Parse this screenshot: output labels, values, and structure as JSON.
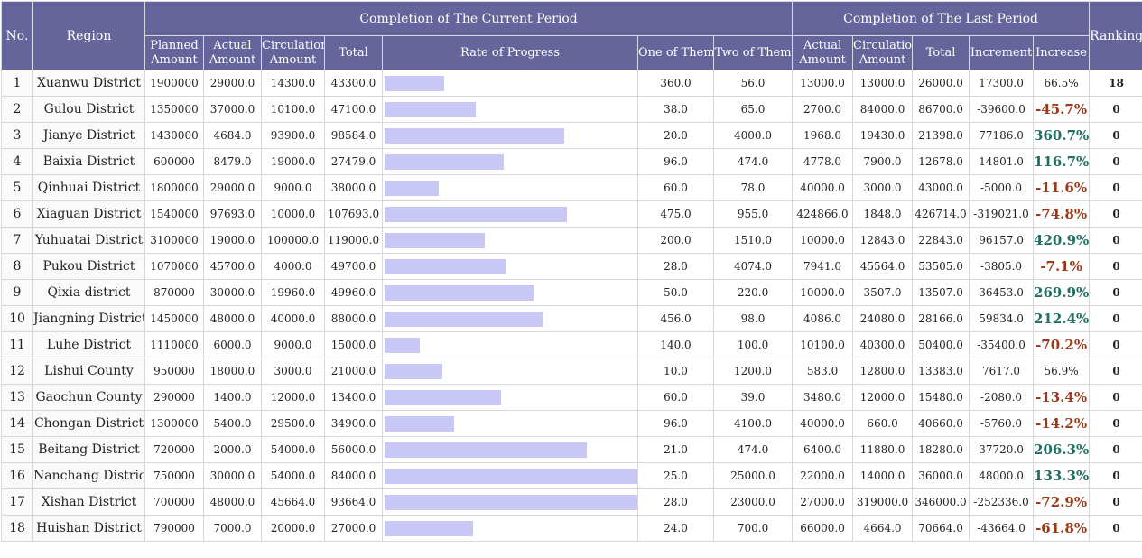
{
  "header": {
    "no": "No.",
    "region": "Region",
    "current_group": "Completion of The Current Period",
    "last_group": "Completion of The Last Period",
    "ranking": "Ranking",
    "planned_amount": "Planned Amount",
    "actual_amount": "Actual Amount",
    "circulation_amount": "Circulation Amount",
    "total": "Total",
    "rate_of_progress": "Rate of Progress",
    "one_of_them": "One of Them",
    "two_of_them": "Two of Them",
    "last_actual_amount": "Actual Amount",
    "last_circulation_amount": "Circulation Amount",
    "last_total": "Total",
    "increment": "Increment",
    "increase": "Increase"
  },
  "colors": {
    "header_bg": "#65649b",
    "bar": "#c9c8f5",
    "increase_positive": "#1f6f63",
    "increase_negative": "#9b3a1a"
  },
  "rows": [
    {
      "no": "1",
      "region": "Xuanwu District",
      "planned": "1900000",
      "actual": "29000.0",
      "circulation": "14300.0",
      "total": "43300.0",
      "progress": 0.235,
      "one": "360.0",
      "two": "56.0",
      "last_actual": "13000.0",
      "last_circulation": "13000.0",
      "last_total": "26000.0",
      "increment": "17300.0",
      "increase": "66.5%",
      "ranking": "18"
    },
    {
      "no": "2",
      "region": "Gulou District",
      "planned": "1350000",
      "actual": "37000.0",
      "circulation": "10100.0",
      "total": "47100.0",
      "progress": 0.36,
      "one": "38.0",
      "two": "65.0",
      "last_actual": "2700.0",
      "last_circulation": "84000.0",
      "last_total": "86700.0",
      "increment": "-39600.0",
      "increase": "-45.7%",
      "ranking": "0"
    },
    {
      "no": "3",
      "region": "Jianye District",
      "planned": "1430000",
      "actual": "4684.0",
      "circulation": "93900.0",
      "total": "98584.0",
      "progress": 0.71,
      "one": "20.0",
      "two": "4000.0",
      "last_actual": "1968.0",
      "last_circulation": "19430.0",
      "last_total": "21398.0",
      "increment": "77186.0",
      "increase": "360.7%",
      "ranking": "0"
    },
    {
      "no": "4",
      "region": "Baixia District",
      "planned": "600000",
      "actual": "8479.0",
      "circulation": "19000.0",
      "total": "27479.0",
      "progress": 0.47,
      "one": "96.0",
      "two": "474.0",
      "last_actual": "4778.0",
      "last_circulation": "7900.0",
      "last_total": "12678.0",
      "increment": "14801.0",
      "increase": "116.7%",
      "ranking": "0"
    },
    {
      "no": "5",
      "region": "Qinhuai District",
      "planned": "1800000",
      "actual": "29000.0",
      "circulation": "9000.0",
      "total": "38000.0",
      "progress": 0.215,
      "one": "60.0",
      "two": "78.0",
      "last_actual": "40000.0",
      "last_circulation": "3000.0",
      "last_total": "43000.0",
      "increment": "-5000.0",
      "increase": "-11.6%",
      "ranking": "0"
    },
    {
      "no": "6",
      "region": "Xiaguan District",
      "planned": "1540000",
      "actual": "97693.0",
      "circulation": "10000.0",
      "total": "107693.0",
      "progress": 0.72,
      "one": "475.0",
      "two": "955.0",
      "last_actual": "424866.0",
      "last_circulation": "1848.0",
      "last_total": "426714.0",
      "increment": "-319021.0",
      "increase": "-74.8%",
      "ranking": "0"
    },
    {
      "no": "7",
      "region": "Yuhuatai District",
      "planned": "3100000",
      "actual": "19000.0",
      "circulation": "100000.0",
      "total": "119000.0",
      "progress": 0.395,
      "one": "200.0",
      "two": "1510.0",
      "last_actual": "10000.0",
      "last_circulation": "12843.0",
      "last_total": "22843.0",
      "increment": "96157.0",
      "increase": "420.9%",
      "ranking": "0"
    },
    {
      "no": "8",
      "region": "Pukou District",
      "planned": "1070000",
      "actual": "45700.0",
      "circulation": "4000.0",
      "total": "49700.0",
      "progress": 0.48,
      "one": "28.0",
      "two": "4074.0",
      "last_actual": "7941.0",
      "last_circulation": "45564.0",
      "last_total": "53505.0",
      "increment": "-3805.0",
      "increase": "-7.1%",
      "ranking": "0"
    },
    {
      "no": "9",
      "region": "Qixia district",
      "planned": "870000",
      "actual": "30000.0",
      "circulation": "19960.0",
      "total": "49960.0",
      "progress": 0.59,
      "one": "50.0",
      "two": "220.0",
      "last_actual": "10000.0",
      "last_circulation": "3507.0",
      "last_total": "13507.0",
      "increment": "36453.0",
      "increase": "269.9%",
      "ranking": "0"
    },
    {
      "no": "10",
      "region": "Jiangning District",
      "planned": "1450000",
      "actual": "48000.0",
      "circulation": "40000.0",
      "total": "88000.0",
      "progress": 0.625,
      "one": "456.0",
      "two": "98.0",
      "last_actual": "4086.0",
      "last_circulation": "24080.0",
      "last_total": "28166.0",
      "increment": "59834.0",
      "increase": "212.4%",
      "ranking": "0"
    },
    {
      "no": "11",
      "region": "Luhe District",
      "planned": "1110000",
      "actual": "6000.0",
      "circulation": "9000.0",
      "total": "15000.0",
      "progress": 0.14,
      "one": "140.0",
      "two": "100.0",
      "last_actual": "10100.0",
      "last_circulation": "40300.0",
      "last_total": "50400.0",
      "increment": "-35400.0",
      "increase": "-70.2%",
      "ranking": "0"
    },
    {
      "no": "12",
      "region": "Lishui County",
      "planned": "950000",
      "actual": "18000.0",
      "circulation": "3000.0",
      "total": "21000.0",
      "progress": 0.23,
      "one": "10.0",
      "two": "1200.0",
      "last_actual": "583.0",
      "last_circulation": "12800.0",
      "last_total": "13383.0",
      "increment": "7617.0",
      "increase": "56.9%",
      "ranking": "0"
    },
    {
      "no": "13",
      "region": "Gaochun County",
      "planned": "290000",
      "actual": "1400.0",
      "circulation": "12000.0",
      "total": "13400.0",
      "progress": 0.46,
      "one": "60.0",
      "two": "39.0",
      "last_actual": "3480.0",
      "last_circulation": "12000.0",
      "last_total": "15480.0",
      "increment": "-2080.0",
      "increase": "-13.4%",
      "ranking": "0"
    },
    {
      "no": "14",
      "region": "Chongan District",
      "planned": "1300000",
      "actual": "5400.0",
      "circulation": "29500.0",
      "total": "34900.0",
      "progress": 0.275,
      "one": "96.0",
      "two": "4100.0",
      "last_actual": "40000.0",
      "last_circulation": "660.0",
      "last_total": "40660.0",
      "increment": "-5760.0",
      "increase": "-14.2%",
      "ranking": "0"
    },
    {
      "no": "15",
      "region": "Beitang District",
      "planned": "720000",
      "actual": "2000.0",
      "circulation": "54000.0",
      "total": "56000.0",
      "progress": 0.8,
      "one": "21.0",
      "two": "474.0",
      "last_actual": "6400.0",
      "last_circulation": "11880.0",
      "last_total": "18280.0",
      "increment": "37720.0",
      "increase": "206.3%",
      "ranking": "0"
    },
    {
      "no": "16",
      "region": "Nanchang District",
      "planned": "750000",
      "actual": "30000.0",
      "circulation": "54000.0",
      "total": "84000.0",
      "progress": 1.0,
      "one": "25.0",
      "two": "25000.0",
      "last_actual": "22000.0",
      "last_circulation": "14000.0",
      "last_total": "36000.0",
      "increment": "48000.0",
      "increase": "133.3%",
      "ranking": "0"
    },
    {
      "no": "17",
      "region": "Xishan District",
      "planned": "700000",
      "actual": "48000.0",
      "circulation": "45664.0",
      "total": "93664.0",
      "progress": 1.0,
      "one": "28.0",
      "two": "23000.0",
      "last_actual": "27000.0",
      "last_circulation": "319000.0",
      "last_total": "346000.0",
      "increment": "-252336.0",
      "increase": "-72.9%",
      "ranking": "0"
    },
    {
      "no": "18",
      "region": "Huishan District",
      "planned": "790000",
      "actual": "7000.0",
      "circulation": "20000.0",
      "total": "27000.0",
      "progress": 0.35,
      "one": "24.0",
      "two": "700.0",
      "last_actual": "66000.0",
      "last_circulation": "4664.0",
      "last_total": "70664.0",
      "increment": "-43664.0",
      "increase": "-61.8%",
      "ranking": "0"
    }
  ]
}
